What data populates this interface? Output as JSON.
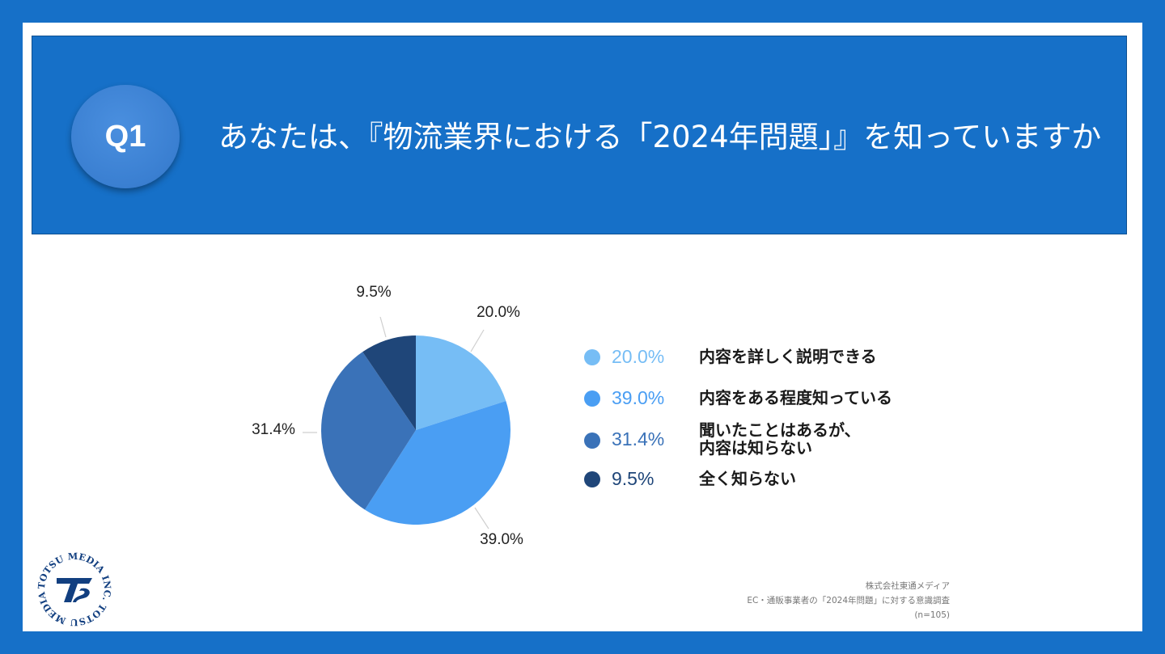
{
  "header": {
    "badge": "Q1",
    "question": "あなたは、『物流業界における「2024年問題」』を知っていますか"
  },
  "chart_data": {
    "type": "pie",
    "categories": [
      "内容を詳しく説明できる",
      "内容をある程度知っている",
      "聞いたことはあるが、内容は知らない",
      "全く知らない"
    ],
    "values": [
      20.0,
      39.0,
      31.4,
      9.5
    ],
    "value_labels": [
      "20.0%",
      "39.0%",
      "31.4%",
      "9.5%"
    ],
    "colors": [
      "#76bdf5",
      "#4a9ef3",
      "#3a72b8",
      "#1f4679"
    ],
    "legend_placement": "right"
  },
  "legend": [
    {
      "pct": "20.0%",
      "label_lines": [
        "内容を詳しく説明できる"
      ],
      "pct_color": "#76bdf5"
    },
    {
      "pct": "39.0%",
      "label_lines": [
        "内容をある程度知っている"
      ],
      "pct_color": "#4a9ef3"
    },
    {
      "pct": "31.4%",
      "label_lines": [
        "聞いたことはあるが、",
        "内容は知らない"
      ],
      "pct_color": "#3a72b8"
    },
    {
      "pct": "9.5%",
      "label_lines": [
        "全く知らない"
      ],
      "pct_color": "#1f4679"
    }
  ],
  "source": {
    "company": "株式会社東通メディア",
    "survey": "EC・通販事業者の「2024年問題」に対する意識調査",
    "n": "(n=105)"
  },
  "logo": {
    "ring_text": "TOTSU MEDIA INC. TOTSU MEDIA INC. ",
    "mark": "TS"
  }
}
